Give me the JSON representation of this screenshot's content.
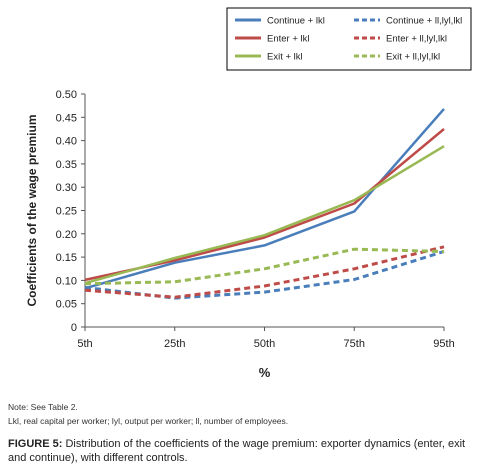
{
  "chart_data": {
    "type": "line",
    "categories": [
      "5th",
      "25th",
      "50th",
      "75th",
      "95th"
    ],
    "xlabel": "%",
    "ylabel": "Coefficients of the wage premium",
    "ylim": [
      0,
      0.5
    ],
    "yticks": [
      "0.50",
      "0.45",
      "0.40",
      "0.35",
      "0.30",
      "0.25",
      "0.20",
      "0.15",
      "0.10",
      "0.05",
      "0"
    ],
    "ytick_values": [
      0.5,
      0.45,
      0.4,
      0.35,
      0.3,
      0.25,
      0.2,
      0.15,
      0.1,
      0.05,
      0
    ],
    "grid": false,
    "legend_position": "top",
    "series": [
      {
        "name": "Continue + lkl",
        "color": "#4a7ebb",
        "dashed": false,
        "values": [
          0.083,
          0.138,
          0.175,
          0.248,
          0.468
        ]
      },
      {
        "name": "Continue + ll,lyl,lkl",
        "color": "#4a7ebb",
        "dashed": true,
        "values": [
          0.085,
          0.062,
          0.075,
          0.102,
          0.162
        ]
      },
      {
        "name": "Enter + lkl",
        "color": "#be4b48",
        "dashed": false,
        "values": [
          0.101,
          0.143,
          0.192,
          0.265,
          0.425
        ]
      },
      {
        "name": "Enter + ll,lyl,lkl",
        "color": "#be4b48",
        "dashed": true,
        "values": [
          0.079,
          0.064,
          0.088,
          0.125,
          0.172
        ]
      },
      {
        "name": "Exit + lkl",
        "color": "#98b954",
        "dashed": false,
        "values": [
          0.094,
          0.148,
          0.197,
          0.272,
          0.388
        ]
      },
      {
        "name": "Exit + ll,lyl,lkl",
        "color": "#98b954",
        "dashed": true,
        "values": [
          0.093,
          0.097,
          0.125,
          0.167,
          0.162
        ]
      }
    ]
  },
  "notes": {
    "note1": "Note: See Table 2.",
    "note2": "Lkl, real capital per worker; lyl, output per worker; ll, number of employees."
  },
  "caption": {
    "label": "FIGURE 5:",
    "text": " Distribution of the coefficients of the wage premium: exporter dynamics (enter, exit and continue), with different controls."
  }
}
